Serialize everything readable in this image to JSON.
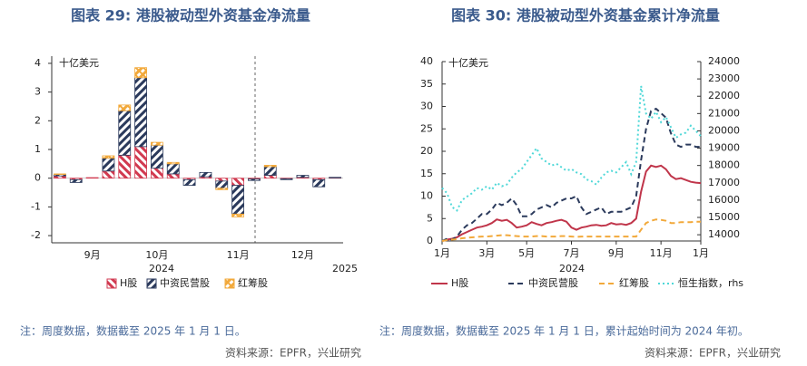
{
  "chart_data": [
    {
      "type": "bar",
      "stacked": true,
      "title": "图表 29: 港股被动型外资基金净流量",
      "y_unit": "十亿美元",
      "categories": [
        null,
        null,
        "9月",
        null,
        null,
        null,
        "10月",
        null,
        null,
        null,
        null,
        "11月",
        null,
        null,
        null,
        "12月",
        null,
        null
      ],
      "year_labels": [
        "2024",
        "2025"
      ],
      "series": [
        {
          "name": "H股",
          "color": "#d13a50",
          "values": [
            0.08,
            -0.05,
            0.02,
            0.25,
            0.8,
            1.1,
            0.35,
            0.15,
            -0.05,
            0.05,
            -0.1,
            -0.25,
            -0.03,
            0.1,
            -0.02,
            0.03,
            -0.05,
            0.01
          ]
        },
        {
          "name": "中资民营股",
          "color": "#2b3a5c",
          "values": [
            0.05,
            -0.1,
            0,
            0.45,
            1.55,
            2.4,
            0.8,
            0.35,
            -0.2,
            0.15,
            -0.25,
            -1.0,
            -0.05,
            0.3,
            -0.03,
            0.07,
            -0.25,
            0.02
          ]
        },
        {
          "name": "红筹股",
          "color": "#f2a93b",
          "values": [
            0.02,
            0,
            0,
            0.08,
            0.2,
            0.35,
            0.1,
            0.05,
            0,
            0,
            -0.05,
            -0.1,
            0,
            0.05,
            0,
            0,
            0,
            0
          ]
        }
      ],
      "ylim": [
        -2.25,
        4.25
      ],
      "yticks": [
        -2,
        -1,
        0,
        1,
        2,
        3,
        4
      ],
      "note": "注：周度数据，数据截至 2025 年 1 月 1 日。",
      "source": "资料来源：EPFR，兴业研究"
    },
    {
      "type": "line",
      "title": "图表 30: 港股被动型外资基金累计净流量",
      "y_unit": "十亿美元",
      "categories": [
        "1月",
        null,
        null,
        null,
        null,
        null,
        null,
        null,
        null,
        "3月",
        null,
        null,
        null,
        null,
        null,
        null,
        null,
        "5月",
        null,
        null,
        null,
        null,
        null,
        null,
        null,
        null,
        "7月",
        null,
        null,
        null,
        null,
        null,
        null,
        null,
        null,
        "9月",
        null,
        null,
        null,
        null,
        null,
        null,
        null,
        null,
        "11月",
        null,
        null,
        null,
        null,
        null,
        null,
        null,
        "1月"
      ],
      "year_labels": [
        "2024"
      ],
      "series": [
        {
          "name": "H股",
          "color": "#c0354a",
          "line_style": "solid",
          "axis": "y",
          "values": [
            0,
            0.3,
            0.5,
            0.8,
            1.5,
            2,
            2.5,
            3,
            3.2,
            3.5,
            4,
            4.8,
            4.5,
            4.7,
            4,
            3,
            3.2,
            3.5,
            4.2,
            3.8,
            3.5,
            4,
            4.2,
            4.5,
            4.7,
            4.3,
            3,
            2.5,
            3,
            3.2,
            3.5,
            3.6,
            3.4,
            3.5,
            4,
            3.7,
            3.8,
            3.6,
            4,
            5,
            11,
            15.5,
            16.8,
            16.5,
            16.8,
            16,
            14.5,
            13.8,
            14,
            13.6,
            13.2,
            13,
            12.9
          ]
        },
        {
          "name": "中资民营股",
          "color": "#2b3a5c",
          "line_style": "dashed",
          "axis": "y",
          "values": [
            0,
            0.5,
            0.3,
            1,
            2.5,
            3.5,
            4,
            5,
            6,
            6,
            7,
            8.5,
            8,
            8.5,
            9.5,
            8,
            5.5,
            5.5,
            6,
            7,
            7.5,
            8,
            7.5,
            8.5,
            9,
            9.5,
            9.5,
            10,
            7.5,
            6,
            6.5,
            7,
            7.5,
            6,
            6.5,
            6.5,
            6.5,
            7,
            7.5,
            10,
            18,
            25,
            29,
            29.5,
            28.5,
            27.5,
            24,
            21.5,
            21,
            21.5,
            21.5,
            21,
            21
          ]
        },
        {
          "name": "红筹股",
          "color": "#f2a93b",
          "line_style": "dashed",
          "axis": "y",
          "values": [
            0,
            0.2,
            0.3,
            0.4,
            0.6,
            0.7,
            0.8,
            0.9,
            1,
            1,
            1.1,
            1.2,
            1.3,
            1.3,
            1.2,
            1.1,
            1,
            1,
            1,
            1.1,
            1.1,
            1,
            1,
            1,
            1.1,
            1.1,
            1,
            0.9,
            1,
            1,
            1,
            1,
            1,
            1,
            1,
            1,
            1,
            1,
            1,
            1,
            2.5,
            4,
            4.5,
            4.8,
            4.7,
            4.5,
            4,
            4,
            4.2,
            4.2,
            4.2,
            4.3,
            4.3
          ]
        },
        {
          "name": "恒生指数，rhs",
          "color": "#4fd8d8",
          "line_style": "dotted",
          "axis": "y2",
          "values": [
            16700,
            16400,
            15600,
            15400,
            16000,
            16200,
            16400,
            16700,
            16600,
            16800,
            16600,
            17000,
            16800,
            16900,
            17300,
            17600,
            17800,
            18200,
            18600,
            19000,
            18400,
            18200,
            18000,
            18100,
            17900,
            17700,
            17800,
            17600,
            17500,
            17200,
            17100,
            16900,
            17300,
            17600,
            17700,
            17600,
            17900,
            18200,
            17500,
            18200,
            22600,
            21000,
            20700,
            21100,
            20500,
            20800,
            20200,
            19600,
            19800,
            19900,
            20300,
            20000,
            19700
          ]
        }
      ],
      "ylim": [
        0,
        40
      ],
      "yticks": [
        0,
        5,
        10,
        15,
        20,
        25,
        30,
        35,
        40
      ],
      "y2lim": [
        13640,
        24000
      ],
      "y2ticks": [
        14000,
        15000,
        16000,
        17000,
        18000,
        19000,
        20000,
        21000,
        22000,
        23000,
        24000
      ],
      "note": "注：周度数据，数据截至 2025 年 1 月 1 日，累计起始时间为 2024 年初。",
      "source": "资料来源：EPFR，兴业研究"
    }
  ]
}
